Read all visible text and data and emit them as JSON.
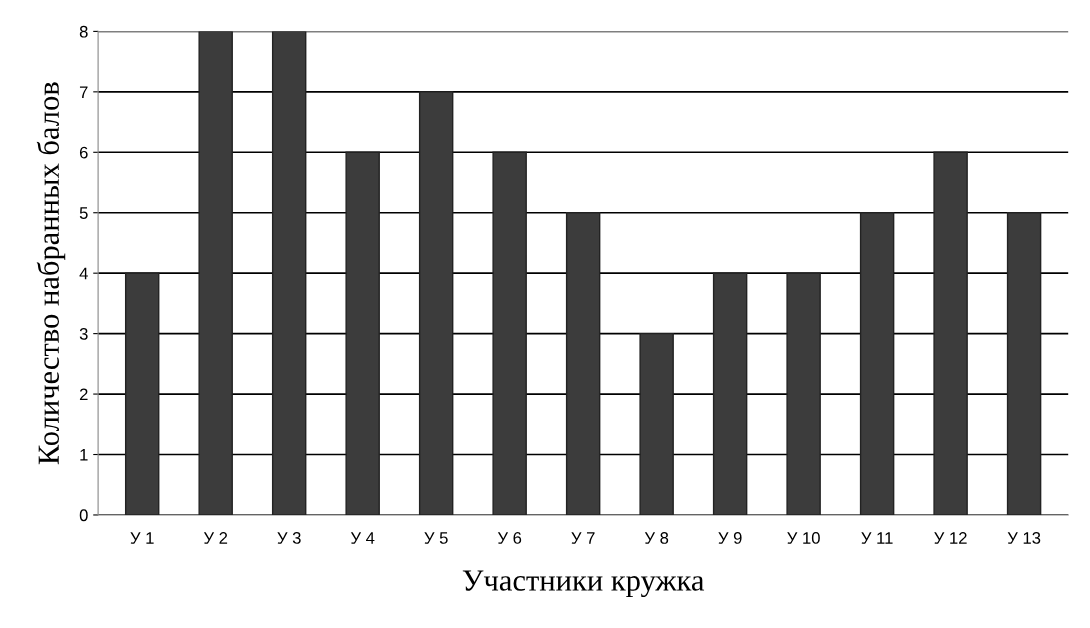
{
  "chart_data": {
    "type": "bar",
    "xlabel": "Участники кружка",
    "ylabel": "Количество набранных балов",
    "categories": [
      "У 1",
      "У 2",
      "У 3",
      "У 4",
      "У 5",
      "У 6",
      "У 7",
      "У 8",
      "У 9",
      "У 10",
      "У 11",
      "У 12",
      "У 13"
    ],
    "values": [
      4,
      8,
      8,
      6,
      7,
      6,
      5,
      3,
      4,
      4,
      5,
      6,
      5
    ],
    "color": "#3c3c3c",
    "ylim": [
      0,
      8
    ],
    "yticks": [
      0,
      1,
      2,
      3,
      4,
      5,
      6,
      7,
      8
    ],
    "grid": "y"
  }
}
